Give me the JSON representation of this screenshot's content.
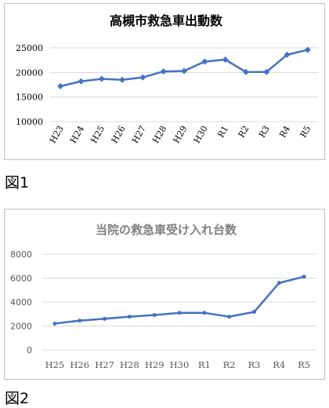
{
  "chart_data": [
    {
      "type": "line",
      "title": "高槻市救急車出動数",
      "categories": [
        "H23",
        "H24",
        "H25",
        "H26",
        "H27",
        "H28",
        "H29",
        "H30",
        "R1",
        "R2",
        "R3",
        "R4",
        "R5"
      ],
      "series": [
        {
          "values": [
            17200,
            18200,
            18700,
            18500,
            19000,
            20200,
            20300,
            22200,
            22600,
            20100,
            20100,
            23600,
            24600
          ]
        }
      ],
      "ylim": [
        10000,
        25000
      ],
      "yticks": [
        10000,
        15000,
        20000,
        25000
      ],
      "grid": true,
      "marker": "diamond",
      "line_color": "#4472c4"
    },
    {
      "type": "line",
      "title": "当院の救急車受け入れ台数",
      "categories": [
        "H25",
        "H26",
        "H27",
        "H28",
        "H29",
        "H30",
        "R1",
        "R2",
        "R3",
        "R4",
        "R5"
      ],
      "series": [
        {
          "values": [
            2200,
            2450,
            2600,
            2780,
            2920,
            3100,
            3100,
            2780,
            3180,
            5600,
            6120
          ]
        }
      ],
      "ylim": [
        0,
        8000
      ],
      "yticks": [
        0,
        2000,
        4000,
        6000,
        8000
      ],
      "grid": true,
      "marker": "circle",
      "line_color": "#4472c4"
    }
  ],
  "captions": {
    "figure1": "図1",
    "figure2": "図2"
  }
}
